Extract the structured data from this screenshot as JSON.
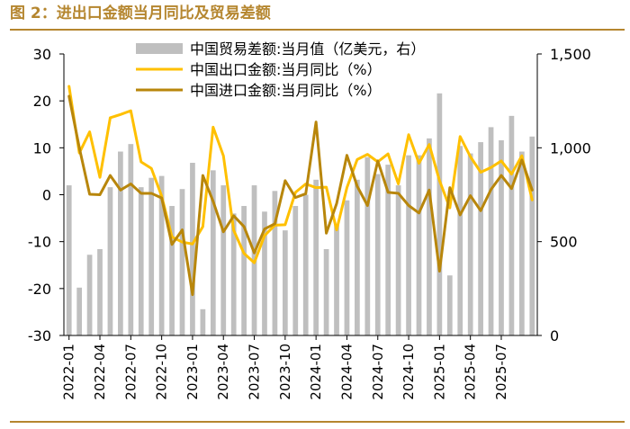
{
  "figure": {
    "title": "图 2：进出口金额当月同比及贸易差额"
  },
  "chart_data": {
    "type": "bar+line",
    "x_ticks": [
      "2022-01",
      "2022-04",
      "2022-07",
      "2022-10",
      "2023-01",
      "2023-04",
      "2023-07",
      "2023-10",
      "2024-01",
      "2024-04",
      "2024-07",
      "2024-10",
      "2025-01",
      "2025-04",
      "2025-07"
    ],
    "months": [
      "2022-01",
      "2022-02",
      "2022-03",
      "2022-04",
      "2022-05",
      "2022-06",
      "2022-07",
      "2022-08",
      "2022-09",
      "2022-10",
      "2022-11",
      "2022-12",
      "2023-01",
      "2023-02",
      "2023-03",
      "2023-04",
      "2023-05",
      "2023-06",
      "2023-07",
      "2023-08",
      "2023-09",
      "2023-10",
      "2023-11",
      "2023-12",
      "2024-01",
      "2024-02",
      "2024-03",
      "2024-04",
      "2024-05",
      "2024-06",
      "2024-07",
      "2024-08",
      "2024-09",
      "2024-10",
      "2024-11",
      "2024-12",
      "2025-01",
      "2025-02",
      "2025-03",
      "2025-04",
      "2025-05",
      "2025-06",
      "2025-07",
      "2025-08",
      "2025-09",
      "2025-10"
    ],
    "left_axis": {
      "ylim": [
        -30,
        30
      ],
      "ticks": [
        "30",
        "20",
        "10",
        "0",
        "-10",
        "-20",
        "-30"
      ],
      "tick_values": [
        30,
        20,
        10,
        0,
        -10,
        -20,
        -30
      ]
    },
    "right_axis": {
      "ylim": [
        0,
        1500
      ],
      "ticks": [
        "1,500",
        "1,000",
        "500",
        "0"
      ],
      "tick_values": [
        1500,
        1000,
        500,
        0
      ]
    },
    "series": [
      {
        "name": "中国贸易差额:当月值（亿美元，右）",
        "type": "bar",
        "axis": "right",
        "color": "#bfbfbf",
        "values": [
          800,
          255,
          430,
          460,
          790,
          980,
          1020,
          790,
          840,
          850,
          690,
          780,
          920,
          140,
          880,
          800,
          650,
          690,
          800,
          660,
          770,
          560,
          690,
          750,
          830,
          460,
          590,
          720,
          830,
          950,
          860,
          910,
          800,
          960,
          960,
          1050,
          1290,
          320,
          1010,
          970,
          1030,
          1110,
          1040,
          1170,
          980,
          1060
        ]
      },
      {
        "name": "中国出口金额:当月同比（%）",
        "type": "line",
        "axis": "left",
        "color": "#ffc000",
        "values": [
          23.1,
          8.9,
          13.4,
          3.7,
          16.4,
          17.1,
          17.9,
          7.0,
          5.6,
          -0.3,
          -9.0,
          -10.1,
          -10.5,
          -6.8,
          14.4,
          8.3,
          -7.6,
          -12.5,
          -14.5,
          -8.7,
          -6.5,
          -6.4,
          0.5,
          2.3,
          1.5,
          1.6,
          -7.5,
          1.5,
          7.5,
          8.6,
          7.0,
          8.7,
          2.3,
          12.8,
          6.7,
          10.7,
          3.0,
          -2.8,
          12.4,
          8.1,
          4.8,
          5.8,
          7.2,
          4.4,
          8.3,
          -1.1
        ]
      },
      {
        "name": "中国进口金额:当月同比（%）",
        "type": "line",
        "axis": "left",
        "color": "#b8860b",
        "values": [
          21.0,
          10.0,
          0.1,
          0.0,
          4.1,
          1.0,
          2.3,
          0.3,
          0.3,
          -0.7,
          -10.6,
          -7.5,
          -21.3,
          4.1,
          -1.4,
          -7.9,
          -4.5,
          -6.8,
          -12.4,
          -7.3,
          -6.2,
          3.0,
          -0.6,
          0.2,
          15.5,
          -8.2,
          -1.9,
          8.4,
          1.8,
          -2.3,
          7.2,
          0.5,
          0.3,
          -2.3,
          -3.9,
          1.0,
          -16.3,
          1.5,
          -4.3,
          -0.2,
          -3.4,
          1.1,
          4.1,
          1.3,
          7.4,
          1.0
        ]
      }
    ],
    "legend": {
      "position": "top-center"
    }
  }
}
